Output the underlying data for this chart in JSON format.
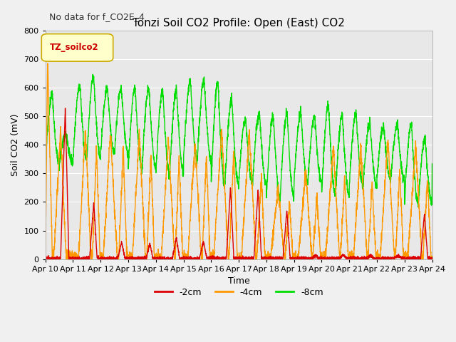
{
  "title": "Tonzi Soil CO2 Profile: Open (East) CO2",
  "suptitle": "No data for f_CO2E_4",
  "ylabel": "Soil CO2 (mV)",
  "xlabel": "Time",
  "legend_label": "TZ_soilco2",
  "ylim": [
    0,
    800
  ],
  "xtick_labels": [
    "Apr 10",
    "Apr 11",
    "Apr 12",
    "Apr 13",
    "Apr 14",
    "Apr 15",
    "Apr 16",
    "Apr 17",
    "Apr 18",
    "Apr 19",
    "Apr 20",
    "Apr 21",
    "Apr 22",
    "Apr 23",
    "Apr 24"
  ],
  "series_labels": [
    "-2cm",
    "-4cm",
    "-8cm"
  ],
  "series_colors": [
    "#dd0000",
    "#ff9900",
    "#00dd00"
  ],
  "line_width": 1.0,
  "plot_bg_color": "#e8e8e8",
  "grid_color": "#ffffff",
  "legend_box_color": "#ffffcc",
  "legend_box_edge": "#ccaa00",
  "fig_bg_color": "#f0f0f0",
  "title_fontsize": 11,
  "axis_fontsize": 9,
  "tick_fontsize": 8
}
